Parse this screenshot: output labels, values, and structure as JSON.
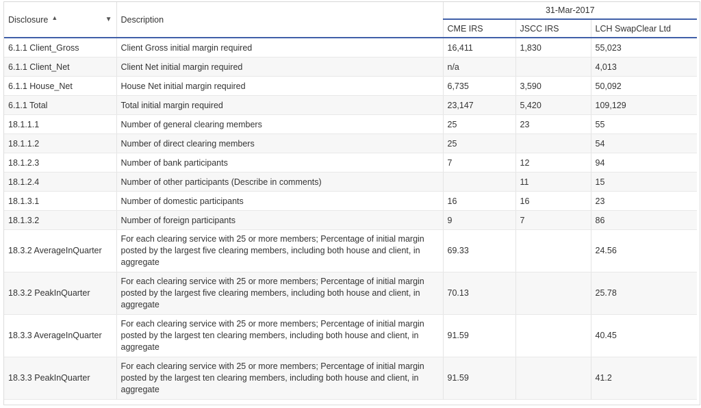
{
  "header": {
    "disclosure_label": "Disclosure",
    "description_label": "Description",
    "date_label": "31-Mar-2017",
    "columns": [
      "CME IRS",
      "JSCC IRS",
      "LCH SwapClear Ltd"
    ],
    "sort_icon": "caret-up-icon",
    "filter_icon": "caret-down-icon"
  },
  "rows": [
    {
      "disclosure": "6.1.1 Client_Gross",
      "description": "Client Gross initial margin required",
      "cme": "16,411",
      "jscc": "1,830",
      "lch": "55,023"
    },
    {
      "disclosure": "6.1.1 Client_Net",
      "description": "Client Net initial margin required",
      "cme": "n/a",
      "jscc": "",
      "lch": "4,013"
    },
    {
      "disclosure": "6.1.1 House_Net",
      "description": "House Net initial margin required",
      "cme": "6,735",
      "jscc": "3,590",
      "lch": "50,092"
    },
    {
      "disclosure": "6.1.1 Total",
      "description": "Total initial margin required",
      "cme": "23,147",
      "jscc": "5,420",
      "lch": "109,129"
    },
    {
      "disclosure": "18.1.1.1",
      "description": "Number of general clearing members",
      "cme": "25",
      "jscc": "23",
      "lch": "55"
    },
    {
      "disclosure": "18.1.1.2",
      "description": "Number of direct clearing members",
      "cme": "25",
      "jscc": "",
      "lch": "54"
    },
    {
      "disclosure": "18.1.2.3",
      "description": "Number of bank participants",
      "cme": "7",
      "jscc": "12",
      "lch": "94"
    },
    {
      "disclosure": "18.1.2.4",
      "description": "Number of other participants (Describe in comments)",
      "cme": "",
      "jscc": "11",
      "lch": "15"
    },
    {
      "disclosure": "18.1.3.1",
      "description": "Number of domestic participants",
      "cme": "16",
      "jscc": "16",
      "lch": "23"
    },
    {
      "disclosure": "18.1.3.2",
      "description": "Number of foreign participants",
      "cme": "9",
      "jscc": "7",
      "lch": "86"
    },
    {
      "disclosure": "18.3.2 AverageInQuarter",
      "description": "For each clearing service with 25 or more members; Percentage of initial margin posted by the largest five clearing members, including both house and client, in aggregate",
      "cme": "69.33",
      "jscc": "",
      "lch": "24.56",
      "tall": true
    },
    {
      "disclosure": "18.3.2 PeakInQuarter",
      "description": "For each clearing service with 25 or more members; Percentage of initial margin posted by the largest five clearing members, including both house and client, in aggregate",
      "cme": "70.13",
      "jscc": "",
      "lch": "25.78",
      "tall": true
    },
    {
      "disclosure": "18.3.3 AverageInQuarter",
      "description": "For each clearing service with 25 or more members; Percentage of initial margin posted by the largest ten clearing members, including both house and client, in aggregate",
      "cme": "91.59",
      "jscc": "",
      "lch": "40.45",
      "tall": true
    },
    {
      "disclosure": "18.3.3 PeakInQuarter",
      "description": "For each clearing service with 25 or more members; Percentage of initial margin posted by the largest ten clearing members, including both house and client, in aggregate",
      "cme": "91.59",
      "jscc": "",
      "lch": "41.2",
      "tall": true
    }
  ]
}
